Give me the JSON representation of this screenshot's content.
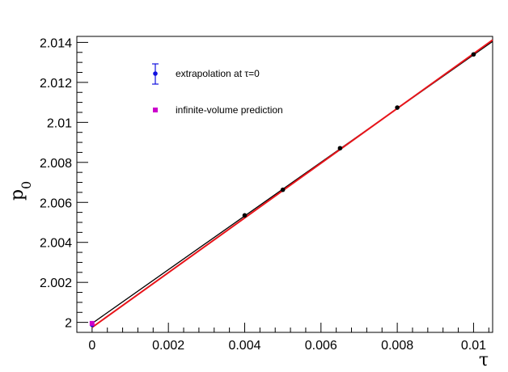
{
  "chart_data": {
    "type": "scatter",
    "xlabel": "τ",
    "ylabel_main": "p",
    "ylabel_sub": "0",
    "xlim": [
      -0.0004,
      0.0105
    ],
    "ylim": [
      1.9995,
      2.0143
    ],
    "x_ticks": [
      {
        "value": 0,
        "label": "0"
      },
      {
        "value": 0.002,
        "label": "0.002"
      },
      {
        "value": 0.004,
        "label": "0.004"
      },
      {
        "value": 0.006,
        "label": "0.006"
      },
      {
        "value": 0.008,
        "label": "0.008"
      },
      {
        "value": 0.01,
        "label": "0.01"
      }
    ],
    "y_ticks": [
      {
        "value": 2.0,
        "label": "2"
      },
      {
        "value": 2.002,
        "label": "2.002"
      },
      {
        "value": 2.004,
        "label": "2.004"
      },
      {
        "value": 2.006,
        "label": "2.006"
      },
      {
        "value": 2.008,
        "label": "2.008"
      },
      {
        "value": 2.01,
        "label": "2.01"
      },
      {
        "value": 2.012,
        "label": "2.012"
      },
      {
        "value": 2.014,
        "label": "2.014"
      }
    ],
    "data_points": {
      "color": "#000000",
      "x": [
        0.004,
        0.005,
        0.0065,
        0.008,
        0.01
      ],
      "y": [
        2.00535,
        2.00663,
        2.00871,
        2.01074,
        2.0134
      ]
    },
    "fit_lines": [
      {
        "color": "#000000",
        "x": [
          0,
          0.0105
        ],
        "y": [
          1.99995,
          2.01405
        ]
      },
      {
        "color": "#e8141a",
        "x": [
          0,
          0.0105
        ],
        "y": [
          1.99975,
          2.01412
        ]
      }
    ],
    "extrapolation": {
      "color": "#1010e0",
      "x": 0,
      "y": 1.99988,
      "err": 8e-05
    },
    "prediction": {
      "color": "#cc00cc",
      "x": 0,
      "y": 1.99995
    },
    "legend": [
      {
        "label": "extrapolation at τ=0",
        "marker": "point-errorbar",
        "color": "#1010e0"
      },
      {
        "label": "infinite-volume prediction",
        "marker": "square",
        "color": "#cc00cc"
      }
    ]
  }
}
